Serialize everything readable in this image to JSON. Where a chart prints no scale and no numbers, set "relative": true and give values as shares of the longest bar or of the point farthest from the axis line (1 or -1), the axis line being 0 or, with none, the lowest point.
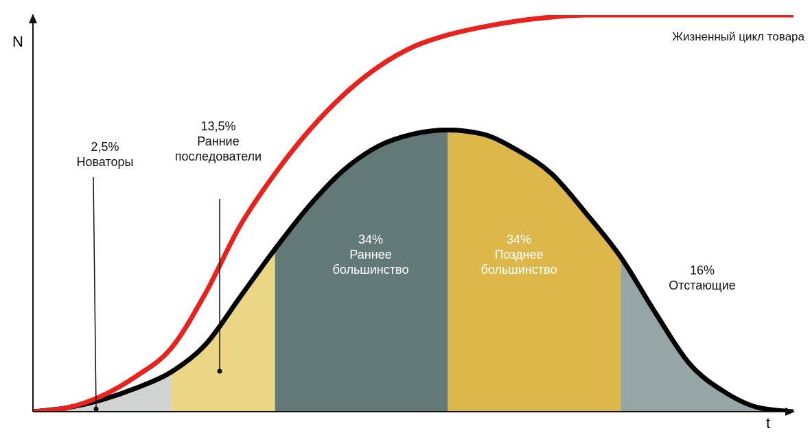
{
  "chart_data": {
    "type": "line",
    "relative": true,
    "xlabel": "t",
    "ylabel": "N",
    "categories": [
      null,
      null,
      null,
      null,
      null,
      null,
      null,
      null,
      null,
      null,
      null,
      null,
      null,
      null,
      null,
      null,
      null,
      null,
      null,
      null,
      null,
      null,
      null
    ],
    "series": [
      {
        "type": "area",
        "color": "#c9cbcb",
        "values": [
          0,
          0.01,
          0.03,
          0.06,
          0.1,
          null,
          null,
          null,
          null,
          null,
          null,
          null,
          null,
          null,
          null,
          null,
          null,
          null,
          null,
          null,
          null,
          null,
          null
        ]
      },
      {
        "type": "area",
        "color": "#e6cf70",
        "values": [
          null,
          null,
          null,
          null,
          0.1,
          0.17,
          0.29,
          0.41,
          null,
          null,
          null,
          null,
          null,
          null,
          null,
          null,
          null,
          null,
          null,
          null,
          null,
          null,
          null
        ]
      },
      {
        "type": "area",
        "color": "#46615f",
        "values": [
          null,
          null,
          null,
          null,
          null,
          null,
          null,
          0.41,
          0.52,
          0.61,
          0.67,
          0.7,
          0.71,
          null,
          null,
          null,
          null,
          null,
          null,
          null,
          null,
          null,
          null
        ]
      },
      {
        "type": "area",
        "color": "#d8aa2c",
        "values": [
          null,
          null,
          null,
          null,
          null,
          null,
          null,
          null,
          null,
          null,
          null,
          null,
          0.71,
          0.7,
          0.66,
          0.6,
          0.5,
          0.39,
          null,
          null,
          null,
          null,
          null
        ]
      },
      {
        "type": "area",
        "color": "#849797",
        "values": [
          null,
          null,
          null,
          null,
          null,
          null,
          null,
          null,
          null,
          null,
          null,
          null,
          null,
          null,
          null,
          null,
          null,
          0.39,
          0.25,
          0.12,
          0.05,
          0.01,
          0
        ]
      },
      {
        "color": "#000000",
        "values": [
          0,
          0.01,
          0.03,
          0.06,
          0.1,
          0.17,
          0.29,
          0.41,
          0.52,
          0.61,
          0.67,
          0.7,
          0.71,
          0.7,
          0.66,
          0.6,
          0.5,
          0.39,
          0.25,
          0.12,
          0.05,
          0.01,
          0
        ]
      },
      {
        "name": "Жизненный цикл товара",
        "color": "#e8231e",
        "values": [
          0,
          0.01,
          0.04,
          0.09,
          0.16,
          0.3,
          0.47,
          0.6,
          0.71,
          0.8,
          0.87,
          0.92,
          0.95,
          0.97,
          0.985,
          0.995,
          1,
          1,
          1,
          1,
          1,
          1,
          1
        ]
      }
    ],
    "annotations": [
      "2,5%\nНоваторы",
      "13,5%\nРанние\nпоследователи",
      "34%\nРаннее\nбольшинство",
      "34%\nПозднее\nбольшинство",
      "16%\nОтстающие"
    ]
  }
}
